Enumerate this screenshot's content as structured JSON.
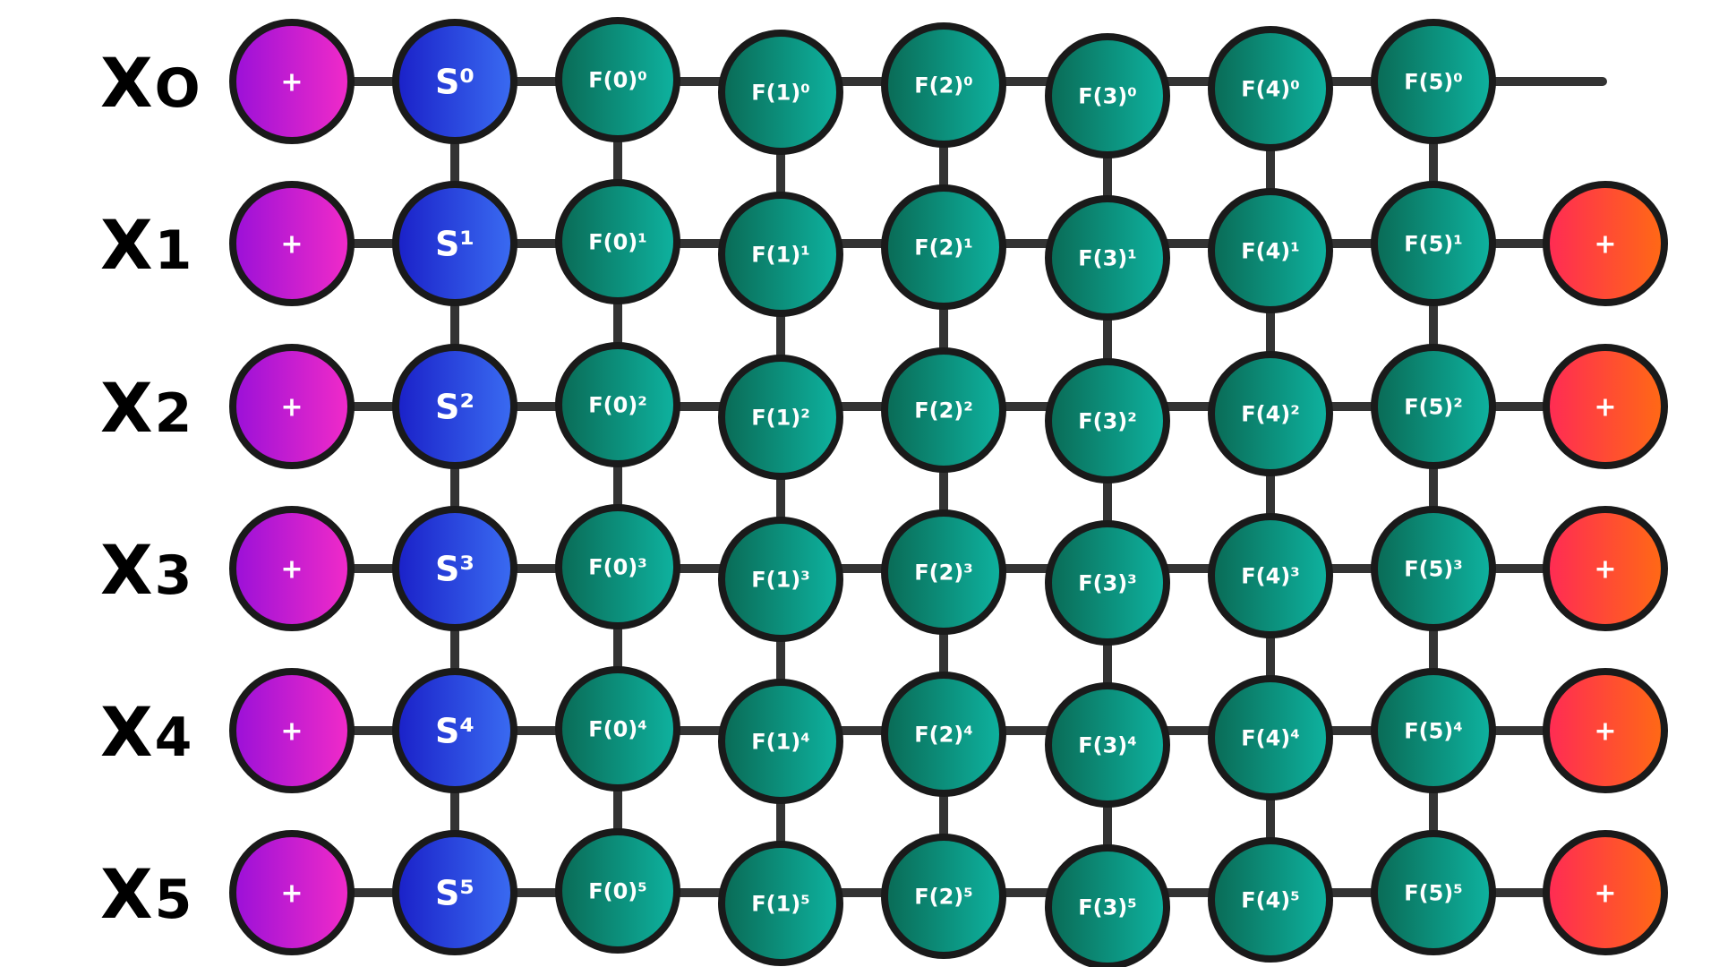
{
  "rows": [
    {
      "label_main": "X",
      "label_sub": "O",
      "s_base": "S",
      "s_sup": "0",
      "f_sup": "0",
      "has_right_plus": false
    },
    {
      "label_main": "X",
      "label_sub": "1",
      "s_base": "S",
      "s_sup": "1",
      "f_sup": "1",
      "has_right_plus": true
    },
    {
      "label_main": "X",
      "label_sub": "2",
      "s_base": "S",
      "s_sup": "2",
      "f_sup": "2",
      "has_right_plus": true
    },
    {
      "label_main": "X",
      "label_sub": "3",
      "s_base": "S",
      "s_sup": "3",
      "f_sup": "3",
      "has_right_plus": true
    },
    {
      "label_main": "X",
      "label_sub": "4",
      "s_base": "S",
      "s_sup": "4",
      "f_sup": "4",
      "has_right_plus": true
    },
    {
      "label_main": "X",
      "label_sub": "5",
      "s_base": "S",
      "s_sup": "5",
      "f_sup": "5",
      "has_right_plus": true
    }
  ],
  "f_columns": [
    "F(0)",
    "F(1)",
    "F(2)",
    "F(3)",
    "F(4)",
    "F(5)"
  ],
  "plus_label": "+",
  "colors": {
    "left_plus_start": "#9a10d8",
    "left_plus_end": "#f22bc8",
    "s_start": "#1a20c8",
    "s_end": "#3a6cf2",
    "f_start": "#0a6a55",
    "f_end": "#0eb3a0",
    "right_plus_start": "#ff2a55",
    "right_plus_end": "#ff6a14",
    "edge": "#333333",
    "outline": "#1a1a1a"
  }
}
